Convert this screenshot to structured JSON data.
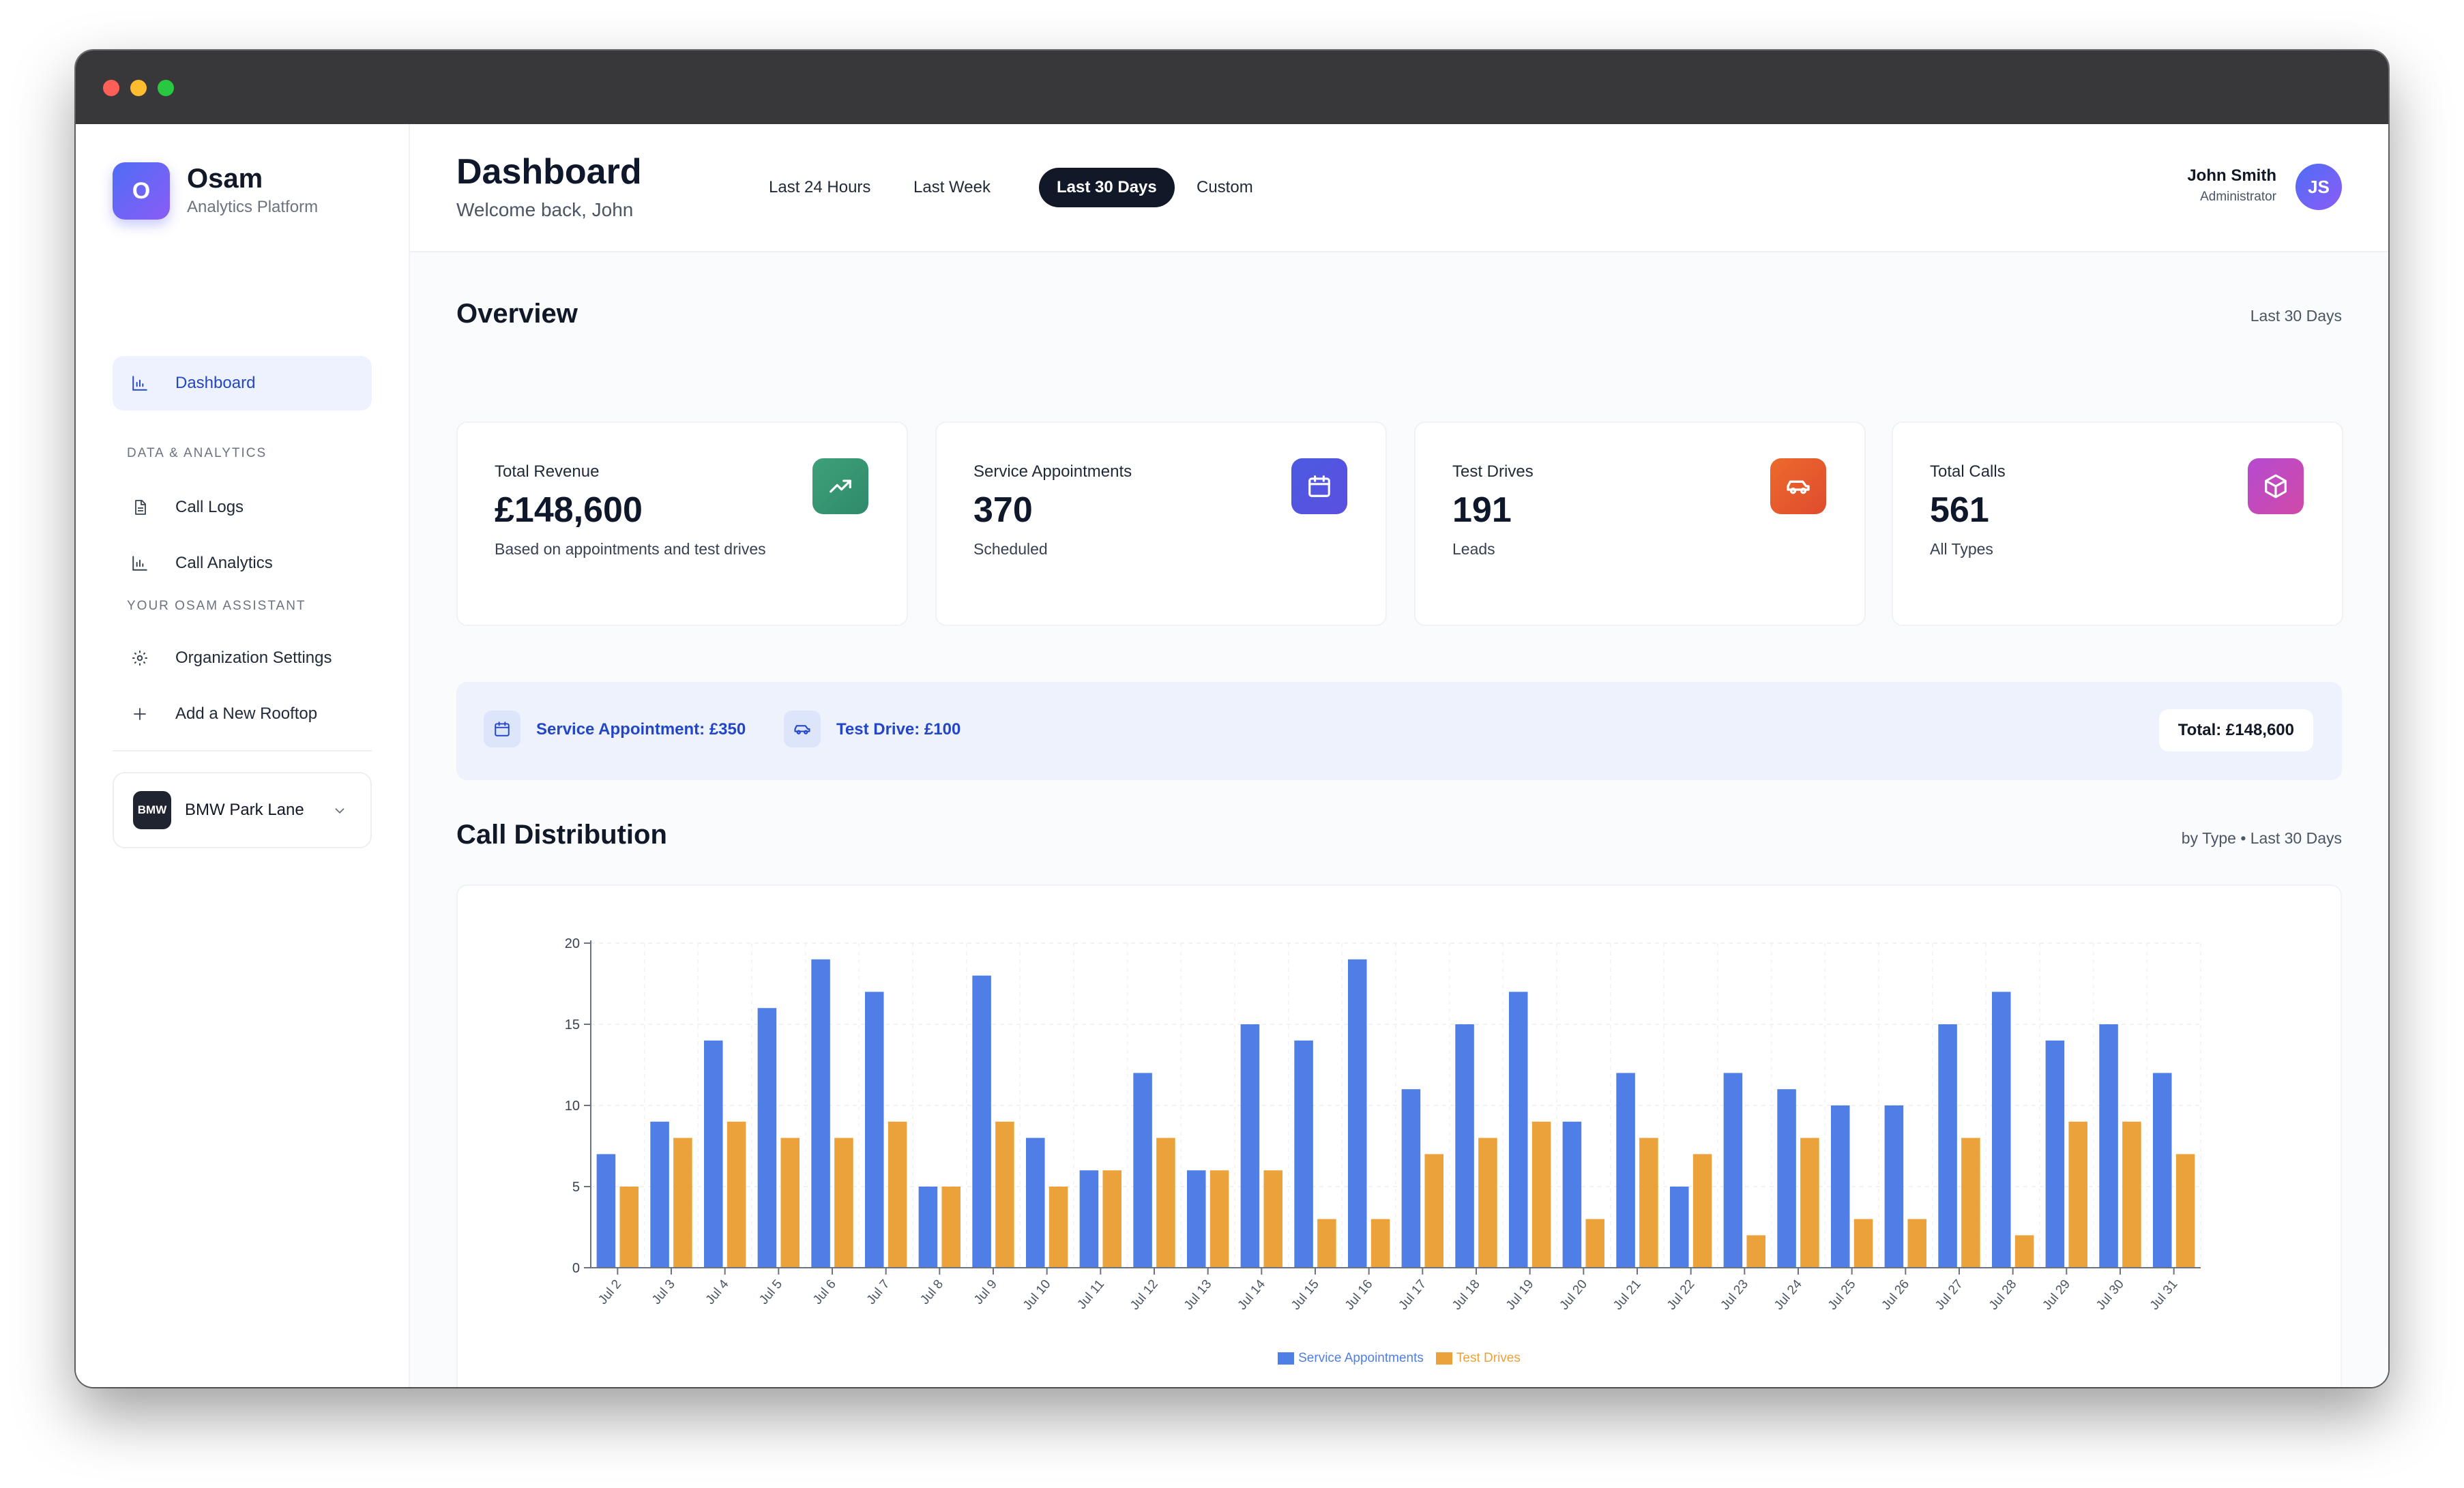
{
  "brand": {
    "logo_letter": "O",
    "name": "Osam",
    "subtitle": "Analytics Platform"
  },
  "sidebar": {
    "dashboard_label": "Dashboard",
    "section_data": "DATA & ANALYTICS",
    "call_logs_label": "Call Logs",
    "call_analytics_label": "Call Analytics",
    "section_assistant": "YOUR OSAM ASSISTANT",
    "org_settings_label": "Organization Settings",
    "add_rooftop_label": "Add a New Rooftop",
    "rooftop": {
      "logo_text": "BMW",
      "name": "BMW Park Lane"
    }
  },
  "header": {
    "title": "Dashboard",
    "welcome": "Welcome back, John",
    "ranges": [
      "Last 24 Hours",
      "Last Week",
      "Last 30 Days",
      "Custom"
    ],
    "active_range": "Last 30 Days",
    "user": {
      "name": "John Smith",
      "role": "Administrator",
      "initials": "JS"
    }
  },
  "overview": {
    "title": "Overview",
    "period": "Last 30 Days",
    "cards": [
      {
        "label": "Total Revenue",
        "value": "£148,600",
        "sub": "Based on appointments and test drives",
        "icon": "trending-up-icon",
        "color": "#3fa07a"
      },
      {
        "label": "Service Appointments",
        "value": "370",
        "sub": "Scheduled",
        "icon": "calendar-icon",
        "color": "#4b5ae0"
      },
      {
        "label": "Test Drives",
        "value": "191",
        "sub": "Leads",
        "icon": "car-icon",
        "color": "#e8622c"
      },
      {
        "label": "Total Calls",
        "value": "561",
        "sub": "All Types",
        "icon": "package-icon",
        "color": "#b044c8"
      }
    ]
  },
  "pricing": {
    "service_appointment": "Service Appointment: £350",
    "test_drive": "Test Drive: £100",
    "total": "Total: £148,600"
  },
  "call_distribution": {
    "title": "Call Distribution",
    "meta": "by Type • Last 30 Days"
  },
  "colors": {
    "service": "#4f7ee6",
    "test": "#eba23b",
    "accent": "#2346c7"
  },
  "chart_data": {
    "type": "bar",
    "categories": [
      "Jul 2",
      "Jul 3",
      "Jul 4",
      "Jul 5",
      "Jul 6",
      "Jul 7",
      "Jul 8",
      "Jul 9",
      "Jul 10",
      "Jul 11",
      "Jul 12",
      "Jul 13",
      "Jul 14",
      "Jul 15",
      "Jul 16",
      "Jul 17",
      "Jul 18",
      "Jul 19",
      "Jul 20",
      "Jul 21",
      "Jul 22",
      "Jul 23",
      "Jul 24",
      "Jul 25",
      "Jul 26",
      "Jul 27",
      "Jul 28",
      "Jul 29",
      "Jul 30",
      "Jul 31"
    ],
    "series": [
      {
        "name": "Service Appointments",
        "color": "#4f7ee6",
        "values": [
          7,
          9,
          14,
          16,
          19,
          17,
          5,
          18,
          8,
          6,
          12,
          6,
          15,
          14,
          19,
          11,
          15,
          17,
          9,
          12,
          5,
          12,
          11,
          10,
          10,
          15,
          17,
          14,
          15,
          12
        ]
      },
      {
        "name": "Test Drives",
        "color": "#eba23b",
        "values": [
          5,
          8,
          9,
          8,
          8,
          9,
          5,
          9,
          5,
          6,
          8,
          6,
          6,
          3,
          3,
          7,
          8,
          9,
          3,
          8,
          7,
          2,
          8,
          3,
          3,
          8,
          2,
          9,
          9,
          7
        ]
      }
    ],
    "ylim": [
      0,
      20
    ],
    "yticks": [
      0,
      5,
      10,
      15,
      20
    ],
    "grid": true,
    "legend": "bottom-center"
  }
}
